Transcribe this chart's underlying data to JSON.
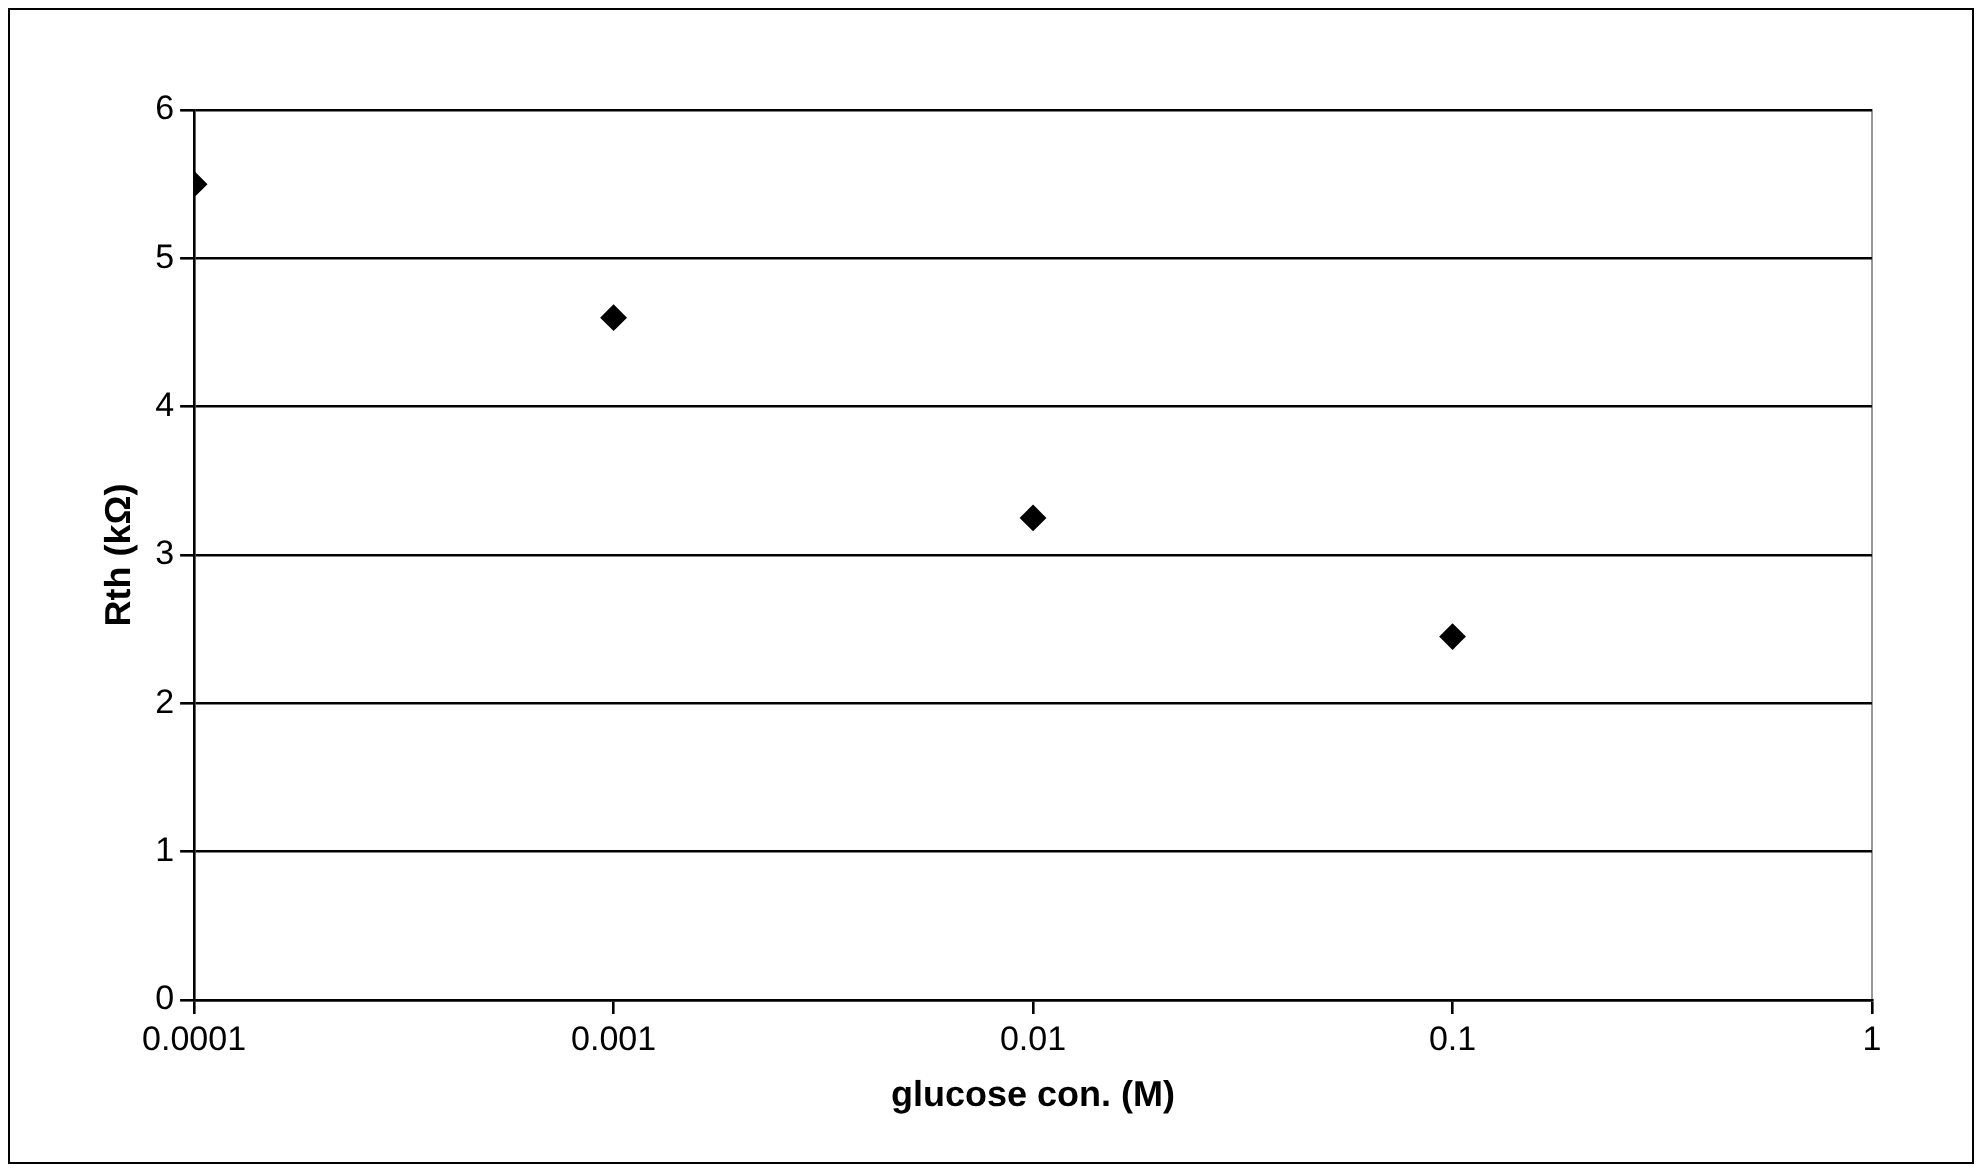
{
  "chart_data": {
    "type": "scatter",
    "xlabel": "glucose con. (M)",
    "ylabel": "Rth (kΩ)",
    "x": [
      0.0001,
      0.001,
      0.01,
      0.1
    ],
    "series": [
      {
        "color": "#000000",
        "values": [
          5.5,
          4.6,
          3.25,
          2.45
        ]
      }
    ],
    "log": "x",
    "xlim": [
      0.0001,
      1
    ],
    "xticks": [
      0.0001,
      0.001,
      0.01,
      0.1,
      1
    ],
    "ylim": [
      0,
      6
    ],
    "yticks": [
      0,
      1,
      2,
      3,
      4,
      5,
      6
    ],
    "grid": "y",
    "marker": "diamond",
    "legend": false
  }
}
